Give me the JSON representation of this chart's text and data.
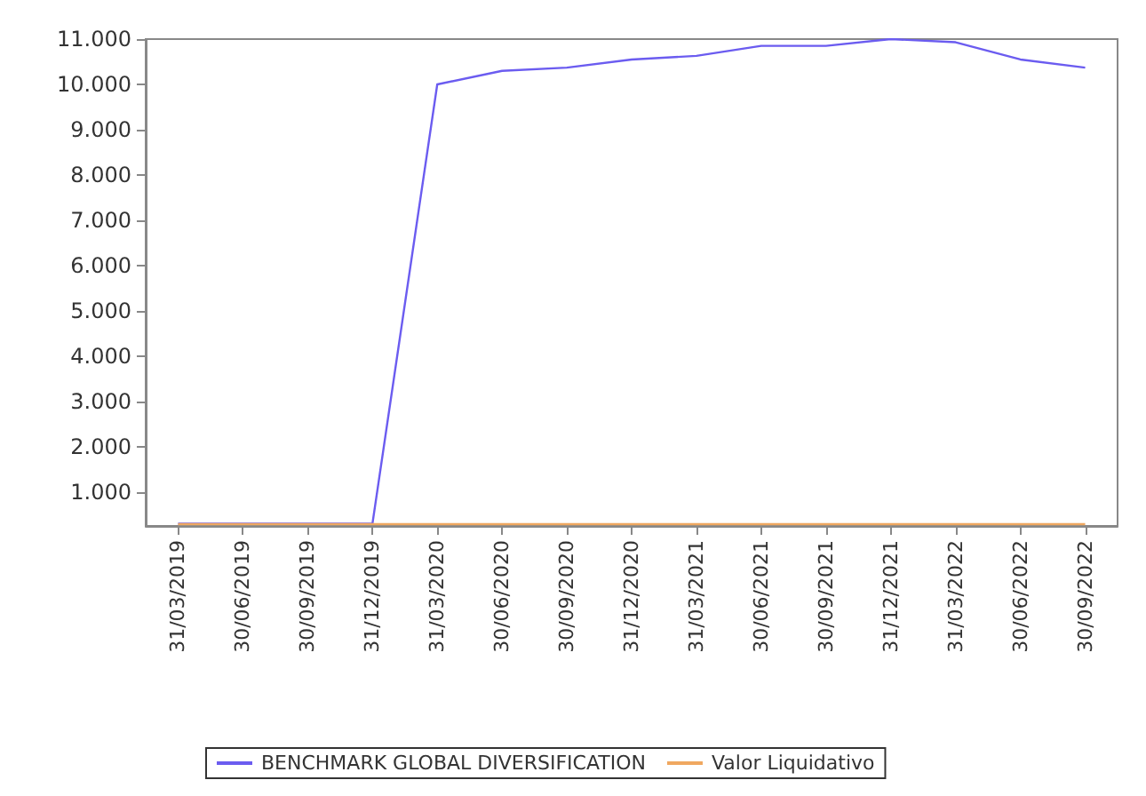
{
  "chart_data": {
    "type": "line",
    "categories": [
      "31/03/2019",
      "30/06/2019",
      "30/09/2019",
      "31/12/2019",
      "31/03/2020",
      "30/06/2020",
      "30/09/2020",
      "31/12/2020",
      "31/03/2021",
      "30/06/2021",
      "30/09/2021",
      "31/12/2021",
      "31/03/2022",
      "30/06/2022",
      "30/09/2022"
    ],
    "series": [
      {
        "name": "BENCHMARK GLOBAL DIVERSIFICATION",
        "color": "#6b5cf0",
        "values": [
          310,
          310,
          310,
          310,
          10000,
          10300,
          10370,
          10550,
          10630,
          10850,
          10850,
          11000,
          10930,
          10550,
          10370
        ]
      },
      {
        "name": "Valor Liquidativo",
        "color": "#f0a860",
        "values": [
          300,
          300,
          300,
          300,
          300,
          300,
          300,
          300,
          300,
          300,
          300,
          300,
          300,
          300,
          300
        ]
      }
    ],
    "ylim": [
      260,
      11000
    ],
    "yticks": [
      {
        "value": 1000,
        "label": "1.000"
      },
      {
        "value": 2000,
        "label": "2.000"
      },
      {
        "value": 3000,
        "label": "3.000"
      },
      {
        "value": 4000,
        "label": "4.000"
      },
      {
        "value": 5000,
        "label": "5.000"
      },
      {
        "value": 6000,
        "label": "6.000"
      },
      {
        "value": 7000,
        "label": "7.000"
      },
      {
        "value": 8000,
        "label": "8.000"
      },
      {
        "value": 9000,
        "label": "9.000"
      },
      {
        "value": 10000,
        "label": "10.000"
      },
      {
        "value": 11000,
        "label": "11.000"
      }
    ],
    "grid": false,
    "legend": "bottom",
    "marker": "none",
    "line_style": "solid"
  }
}
